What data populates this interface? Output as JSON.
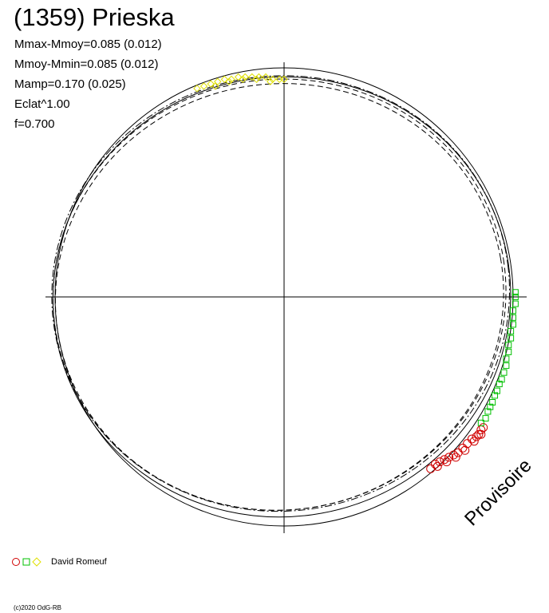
{
  "title": "(1359) Prieska",
  "params": [
    "Mmax-Mmoy=0.085 (0.012)",
    "Mmoy-Mmin=0.085 (0.012)",
    "Mamp=0.170 (0.025)",
    "Eclat^1.00",
    "f=0.700"
  ],
  "watermark": "Provisoire",
  "legend": {
    "observer": "David Romeuf",
    "markers": [
      "circle",
      "square",
      "diamond"
    ],
    "colors": [
      "#d00000",
      "#00c000",
      "#e0e000"
    ]
  },
  "credit": "(c)2020 OdG-RB",
  "chart_data": {
    "type": "scatter",
    "description_axes": "polar lightcurve plot, unlabeled axes, reference circle centered at origin",
    "xlim": [
      -1,
      1
    ],
    "ylim": [
      -1,
      1
    ],
    "reference_circle_radius": 1.0,
    "series": [
      {
        "marker": "circle",
        "color": "#d00000",
        "points": [
          [
            0.64,
            -0.75
          ],
          [
            0.66,
            -0.73
          ],
          [
            0.68,
            -0.72
          ],
          [
            0.7,
            -0.71
          ],
          [
            0.72,
            -0.7
          ],
          [
            0.74,
            -0.69
          ],
          [
            0.76,
            -0.68
          ],
          [
            0.78,
            -0.66
          ],
          [
            0.8,
            -0.64
          ],
          [
            0.82,
            -0.62
          ],
          [
            0.84,
            -0.61
          ],
          [
            0.85,
            -0.6
          ],
          [
            0.86,
            -0.58
          ],
          [
            0.87,
            -0.57
          ],
          [
            0.67,
            -0.74
          ],
          [
            0.71,
            -0.72
          ],
          [
            0.75,
            -0.7
          ],
          [
            0.79,
            -0.67
          ],
          [
            0.83,
            -0.63
          ],
          [
            0.86,
            -0.6
          ]
        ]
      },
      {
        "marker": "square",
        "color": "#00c000",
        "points": [
          [
            0.86,
            -0.55
          ],
          [
            0.88,
            -0.53
          ],
          [
            0.89,
            -0.5
          ],
          [
            0.9,
            -0.48
          ],
          [
            0.91,
            -0.46
          ],
          [
            0.92,
            -0.43
          ],
          [
            0.93,
            -0.41
          ],
          [
            0.94,
            -0.38
          ],
          [
            0.95,
            -0.36
          ],
          [
            0.96,
            -0.33
          ],
          [
            0.97,
            -0.3
          ],
          [
            0.97,
            -0.27
          ],
          [
            0.98,
            -0.24
          ],
          [
            0.98,
            -0.21
          ],
          [
            0.99,
            -0.18
          ],
          [
            0.99,
            -0.15
          ],
          [
            1.0,
            -0.12
          ],
          [
            1.0,
            -0.09
          ],
          [
            1.0,
            -0.06
          ],
          [
            1.01,
            -0.03
          ],
          [
            1.01,
            0.0
          ],
          [
            1.01,
            0.02
          ]
        ]
      },
      {
        "marker": "diamond",
        "color": "#e0e000",
        "points": [
          [
            -0.38,
            0.91
          ],
          [
            -0.35,
            0.92
          ],
          [
            -0.32,
            0.93
          ],
          [
            -0.29,
            0.94
          ],
          [
            -0.26,
            0.95
          ],
          [
            -0.23,
            0.95
          ],
          [
            -0.2,
            0.96
          ],
          [
            -0.17,
            0.96
          ],
          [
            -0.14,
            0.96
          ],
          [
            -0.11,
            0.96
          ],
          [
            -0.08,
            0.96
          ],
          [
            -0.05,
            0.95
          ],
          [
            -0.02,
            0.95
          ],
          [
            0.0,
            0.95
          ],
          [
            -0.3,
            0.92
          ],
          [
            -0.24,
            0.94
          ],
          [
            -0.18,
            0.95
          ],
          [
            -0.12,
            0.95
          ],
          [
            -0.06,
            0.94
          ]
        ]
      }
    ],
    "model_curves": [
      {
        "style": "solid",
        "rx": 1.0,
        "ry": 0.96,
        "dx": -0.01,
        "dy": 0.0,
        "rot": -8
      },
      {
        "style": "dashed",
        "rx": 0.99,
        "ry": 0.94,
        "dx": -0.02,
        "dy": 0.01,
        "rot": -9
      },
      {
        "style": "dashed",
        "rx": 0.98,
        "ry": 0.93,
        "dx": -0.02,
        "dy": 0.0,
        "rot": -10
      },
      {
        "style": "dashdot",
        "rx": 1.0,
        "ry": 0.95,
        "dx": -0.015,
        "dy": 0.015,
        "rot": -7
      }
    ]
  }
}
